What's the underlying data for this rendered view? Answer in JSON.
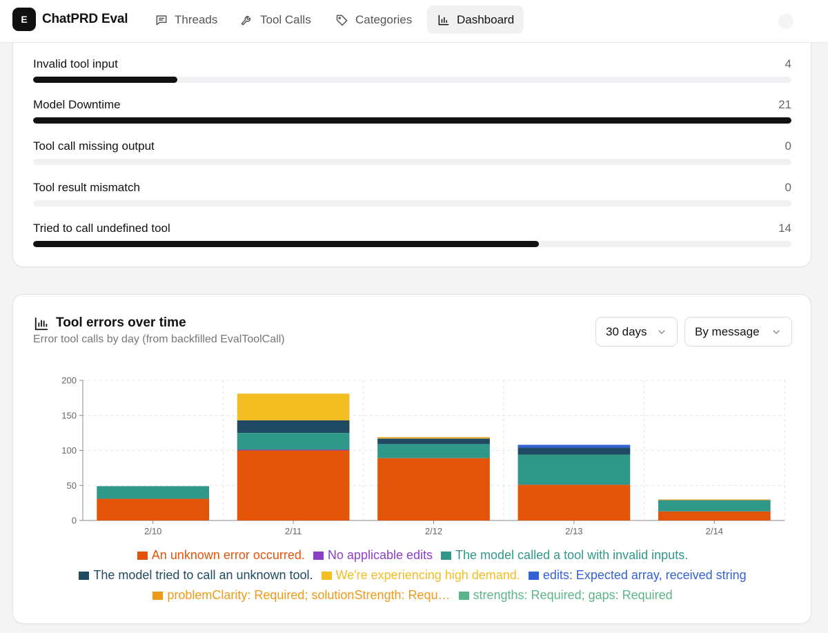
{
  "nav": {
    "logo_letter": "E",
    "app_title": "ChatPRD Eval",
    "items": [
      {
        "label": "Threads",
        "icon": "message-square-icon"
      },
      {
        "label": "Tool Calls",
        "icon": "wrench-icon"
      },
      {
        "label": "Categories",
        "icon": "tag-icon"
      },
      {
        "label": "Dashboard",
        "icon": "bar-chart-icon",
        "active": true
      }
    ]
  },
  "error_types": {
    "max": 21,
    "items": [
      {
        "label": "Invalid tool input",
        "count": 4
      },
      {
        "label": "Model Downtime",
        "count": 21
      },
      {
        "label": "Tool call missing output",
        "count": 0
      },
      {
        "label": "Tool result mismatch",
        "count": 0
      },
      {
        "label": "Tried to call undefined tool",
        "count": 14
      }
    ]
  },
  "tool_errors": {
    "title": "Tool errors over time",
    "subtitle": "Error tool calls by day (from backfilled EvalToolCall)",
    "range_select": "30 days",
    "group_select": "By message"
  },
  "chart_data": {
    "type": "bar",
    "stacked": true,
    "categories": [
      "2/10",
      "2/11",
      "2/12",
      "2/13",
      "2/14"
    ],
    "ylim": [
      0,
      200
    ],
    "yticks": [
      0,
      50,
      100,
      150,
      200
    ],
    "grid": true,
    "series": [
      {
        "name": "An unknown error occurred.",
        "color": "#e2540a",
        "values": [
          31,
          100,
          89,
          51,
          13
        ]
      },
      {
        "name": "No applicable edits",
        "color": "#8b3fc6",
        "values": [
          0,
          1,
          0,
          0,
          0
        ]
      },
      {
        "name": "The model called a tool with invalid inputs.",
        "color": "#2f9889",
        "values": [
          18,
          24,
          20,
          43,
          16
        ]
      },
      {
        "name": "The model tried to call an unknown tool.",
        "color": "#204a62",
        "values": [
          0,
          18,
          8,
          10,
          0
        ]
      },
      {
        "name": "We're experiencing high demand.",
        "color": "#f4bd22",
        "values": [
          0,
          38,
          1,
          0,
          0
        ]
      },
      {
        "name": "edits: Expected array, received string",
        "color": "#3461d6",
        "values": [
          0,
          0,
          0,
          4,
          0
        ]
      },
      {
        "name": "problemClarity: Required; solutionStrength: Requ…",
        "color": "#ee9a19",
        "values": [
          0,
          0,
          1,
          0,
          1
        ]
      },
      {
        "name": "strengths: Required; gaps: Required",
        "color": "#5cb58a",
        "values": [
          0,
          0,
          0,
          0,
          0
        ]
      }
    ],
    "legend_rows": [
      [
        0,
        1,
        2
      ],
      [
        3,
        4,
        5
      ],
      [
        6,
        7
      ]
    ]
  }
}
